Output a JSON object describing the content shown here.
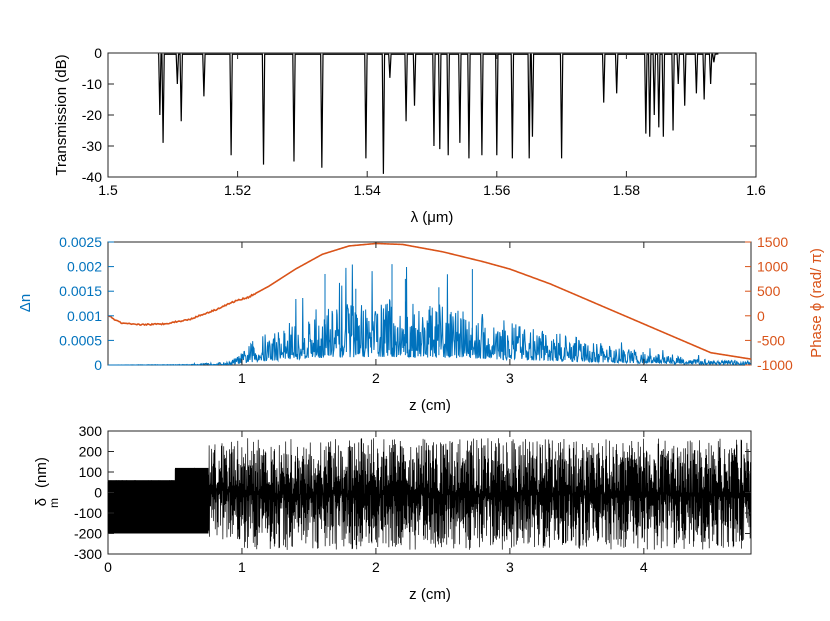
{
  "chart_data": [
    {
      "id": "transmission",
      "type": "line",
      "title": "",
      "xlabel": "λ (μm)",
      "ylabel": "Transmission (dB)",
      "xlim": [
        1.5,
        1.6
      ],
      "ylim": [
        -40,
        0
      ],
      "x_ticks": [
        "1.5",
        "1.52",
        "1.54",
        "1.56",
        "1.58",
        "1.6"
      ],
      "y_ticks": [
        "0",
        "-10",
        "-20",
        "-30",
        "-40"
      ],
      "series_color": "#000000",
      "dips": [
        {
          "x": 1.508,
          "y": -20
        },
        {
          "x": 1.5085,
          "y": -29
        },
        {
          "x": 1.5107,
          "y": -10
        },
        {
          "x": 1.5113,
          "y": -22
        },
        {
          "x": 1.5148,
          "y": -14
        },
        {
          "x": 1.519,
          "y": -33
        },
        {
          "x": 1.524,
          "y": -36
        },
        {
          "x": 1.5287,
          "y": -35
        },
        {
          "x": 1.533,
          "y": -37
        },
        {
          "x": 1.5398,
          "y": -34
        },
        {
          "x": 1.5425,
          "y": -39
        },
        {
          "x": 1.5435,
          "y": -8
        },
        {
          "x": 1.546,
          "y": -22
        },
        {
          "x": 1.5473,
          "y": -17
        },
        {
          "x": 1.5503,
          "y": -30
        },
        {
          "x": 1.5512,
          "y": -31
        },
        {
          "x": 1.5525,
          "y": -33
        },
        {
          "x": 1.5543,
          "y": -29
        },
        {
          "x": 1.5557,
          "y": -34
        },
        {
          "x": 1.5577,
          "y": -33
        },
        {
          "x": 1.56,
          "y": -33
        },
        {
          "x": 1.5624,
          "y": -34
        },
        {
          "x": 1.565,
          "y": -34
        },
        {
          "x": 1.5655,
          "y": -27
        },
        {
          "x": 1.57,
          "y": -34
        },
        {
          "x": 1.5765,
          "y": -16
        },
        {
          "x": 1.5785,
          "y": -13
        },
        {
          "x": 1.583,
          "y": -26
        },
        {
          "x": 1.5836,
          "y": -27
        },
        {
          "x": 1.5843,
          "y": -20
        },
        {
          "x": 1.585,
          "y": -24
        },
        {
          "x": 1.5857,
          "y": -27
        },
        {
          "x": 1.5872,
          "y": -25
        },
        {
          "x": 1.588,
          "y": -10
        },
        {
          "x": 1.589,
          "y": -17
        },
        {
          "x": 1.5908,
          "y": -13
        },
        {
          "x": 1.592,
          "y": -15
        },
        {
          "x": 1.593,
          "y": -10
        },
        {
          "x": 1.5935,
          "y": -3
        }
      ]
    },
    {
      "id": "index-phase",
      "type": "line",
      "title": "",
      "xlabel": "z (cm)",
      "ylabel": "Δn",
      "ylabel_right": "Phase ϕ   (rad/ π)",
      "xlim": [
        0,
        4.8
      ],
      "ylim": [
        0,
        0.0025
      ],
      "ylim_right": [
        -1000,
        1500
      ],
      "x_ticks": [
        "1",
        "2",
        "3",
        "4"
      ],
      "y_ticks": [
        "0",
        "0.0005",
        "0.001",
        "0.0015",
        "0.002",
        "0.0025"
      ],
      "y_ticks_right": [
        "-1000",
        "-500",
        "0",
        "500",
        "1000",
        "1500"
      ],
      "series": [
        {
          "axis": "left",
          "color": "#0072BD",
          "envelope": [
            {
              "z": 0.0,
              "amp": 0.0
            },
            {
              "z": 0.6,
              "amp": 1e-05
            },
            {
              "z": 0.9,
              "amp": 5e-05
            },
            {
              "z": 1.0,
              "amp": 0.0002
            },
            {
              "z": 1.1,
              "amp": 0.00045
            },
            {
              "z": 1.3,
              "amp": 0.00065
            },
            {
              "z": 1.5,
              "amp": 0.0009
            },
            {
              "z": 1.8,
              "amp": 0.00105
            },
            {
              "z": 2.0,
              "amp": 0.0011
            },
            {
              "z": 2.3,
              "amp": 0.00105
            },
            {
              "z": 2.7,
              "amp": 0.0009
            },
            {
              "z": 3.0,
              "amp": 0.0007
            },
            {
              "z": 3.4,
              "amp": 0.0005
            },
            {
              "z": 3.8,
              "amp": 0.0003
            },
            {
              "z": 4.2,
              "amp": 0.00015
            },
            {
              "z": 4.8,
              "amp": 5e-05
            }
          ],
          "spikes": [
            {
              "z": 1.62,
              "y": 0.00185
            },
            {
              "z": 2.12,
              "y": 0.00205
            },
            {
              "z": 2.22,
              "y": 0.00175
            },
            {
              "z": 2.47,
              "y": 0.00158
            },
            {
              "z": 2.72,
              "y": 0.00195
            },
            {
              "z": 1.85,
              "y": 0.00155
            }
          ]
        },
        {
          "axis": "right",
          "color": "#D95319",
          "points": [
            {
              "z": 0.0,
              "y": 0
            },
            {
              "z": 0.1,
              "y": -150
            },
            {
              "z": 0.2,
              "y": -180
            },
            {
              "z": 0.4,
              "y": -170
            },
            {
              "z": 0.6,
              "y": -80
            },
            {
              "z": 0.8,
              "y": 120
            },
            {
              "z": 0.95,
              "y": 300
            },
            {
              "z": 1.05,
              "y": 380
            },
            {
              "z": 1.2,
              "y": 600
            },
            {
              "z": 1.4,
              "y": 950
            },
            {
              "z": 1.6,
              "y": 1250
            },
            {
              "z": 1.8,
              "y": 1420
            },
            {
              "z": 2.0,
              "y": 1470
            },
            {
              "z": 2.2,
              "y": 1450
            },
            {
              "z": 2.5,
              "y": 1300
            },
            {
              "z": 2.8,
              "y": 1100
            },
            {
              "z": 3.0,
              "y": 950
            },
            {
              "z": 3.3,
              "y": 650
            },
            {
              "z": 3.6,
              "y": 300
            },
            {
              "z": 3.9,
              "y": -50
            },
            {
              "z": 4.2,
              "y": -400
            },
            {
              "z": 4.5,
              "y": -750
            },
            {
              "z": 4.8,
              "y": -880
            }
          ]
        }
      ]
    },
    {
      "id": "period-chirp",
      "type": "line",
      "title": "",
      "xlabel": "z (cm)",
      "ylabel": "δ",
      "ylabel_sub": "m",
      "ylabel_unit": "(nm)",
      "xlim": [
        0,
        4.8
      ],
      "ylim": [
        -300,
        300
      ],
      "x_ticks": [
        "0",
        "1",
        "2",
        "3",
        "4"
      ],
      "y_ticks": [
        "300",
        "200",
        "100",
        "0",
        "-100",
        "-200",
        "-300"
      ],
      "series_color": "#000000",
      "regions": [
        {
          "z0": 0.0,
          "z1": 0.5,
          "lo": -200,
          "hi": 60
        },
        {
          "z0": 0.5,
          "z1": 0.75,
          "lo": -200,
          "hi": 120
        },
        {
          "z0": 0.75,
          "z1": 1.0,
          "lo": -230,
          "hi": 260
        },
        {
          "z0": 1.0,
          "z1": 4.8,
          "lo": -280,
          "hi": 265
        }
      ]
    }
  ]
}
